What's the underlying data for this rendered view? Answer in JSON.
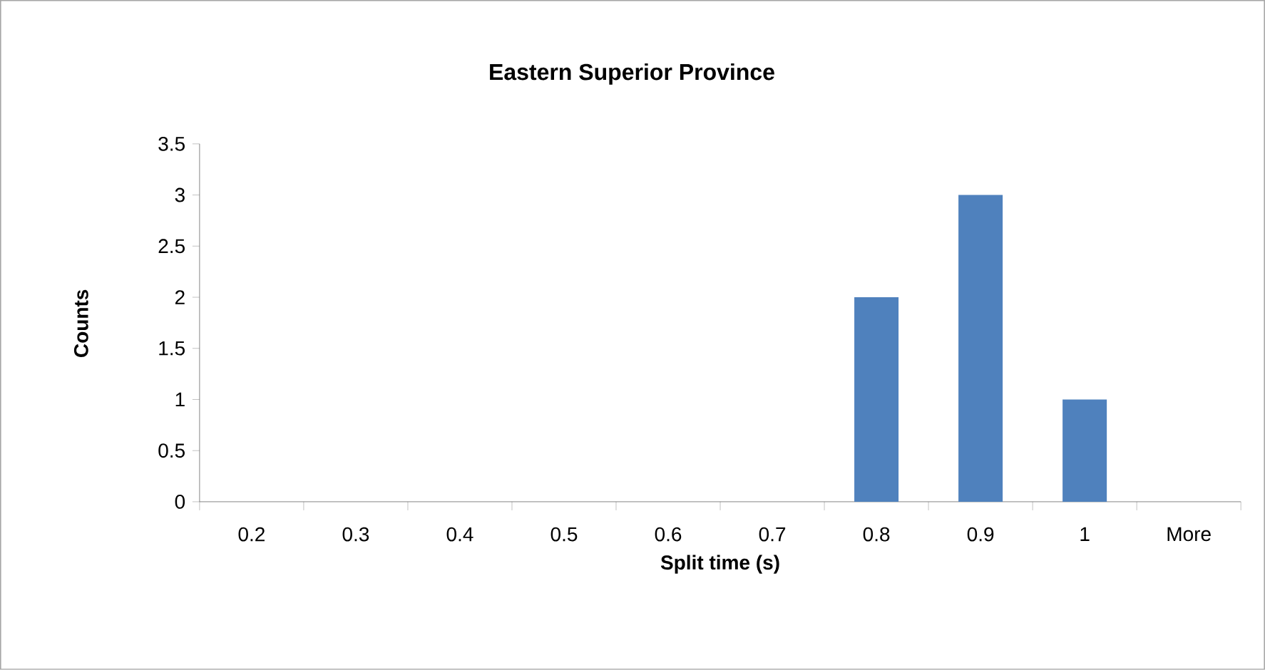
{
  "chart_data": {
    "type": "bar",
    "title": "Eastern Superior Province",
    "xlabel": "Split time (s)",
    "ylabel": "Counts",
    "categories": [
      "0.2",
      "0.3",
      "0.4",
      "0.5",
      "0.6",
      "0.7",
      "0.8",
      "0.9",
      "1",
      "More"
    ],
    "values": [
      0,
      0,
      0,
      0,
      0,
      0,
      2,
      3,
      1,
      0
    ],
    "color": "#4f81bd",
    "ylim": [
      0,
      3.5
    ],
    "yticks": [
      0,
      0.5,
      1,
      1.5,
      2,
      2.5,
      3,
      3.5
    ],
    "grid": false
  }
}
